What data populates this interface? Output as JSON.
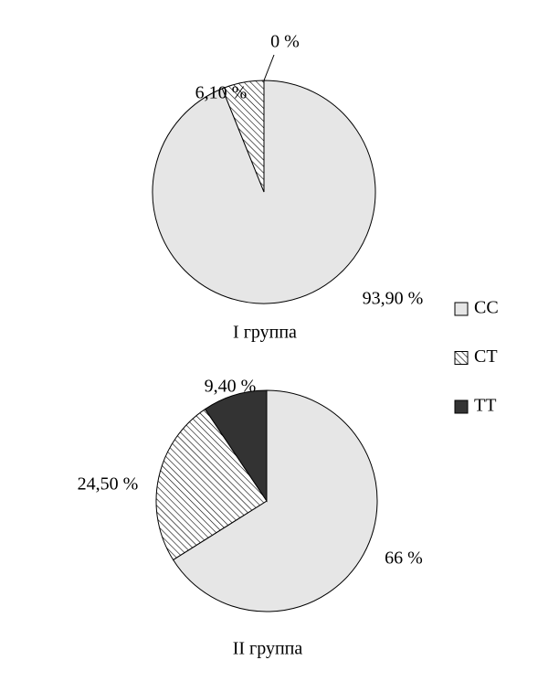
{
  "chart_data": [
    {
      "type": "pie",
      "title": "I группа",
      "categories": [
        "CC",
        "CT",
        "TT"
      ],
      "values": [
        93.9,
        6.1,
        0
      ],
      "value_labels": [
        "93,90 %",
        "6,10 %",
        "0 %"
      ],
      "colors": [
        "#e6e6e6",
        "#ffffff",
        "#333333"
      ],
      "hatch": [
        false,
        true,
        false
      ]
    },
    {
      "type": "pie",
      "title": "II группа",
      "categories": [
        "CC",
        "CT",
        "TT"
      ],
      "values": [
        66,
        24.5,
        9.4
      ],
      "value_labels": [
        "66 %",
        "24,50 %",
        "9,40 %"
      ],
      "colors": [
        "#e6e6e6",
        "#ffffff",
        "#333333"
      ],
      "hatch": [
        false,
        true,
        false
      ]
    }
  ]
}
